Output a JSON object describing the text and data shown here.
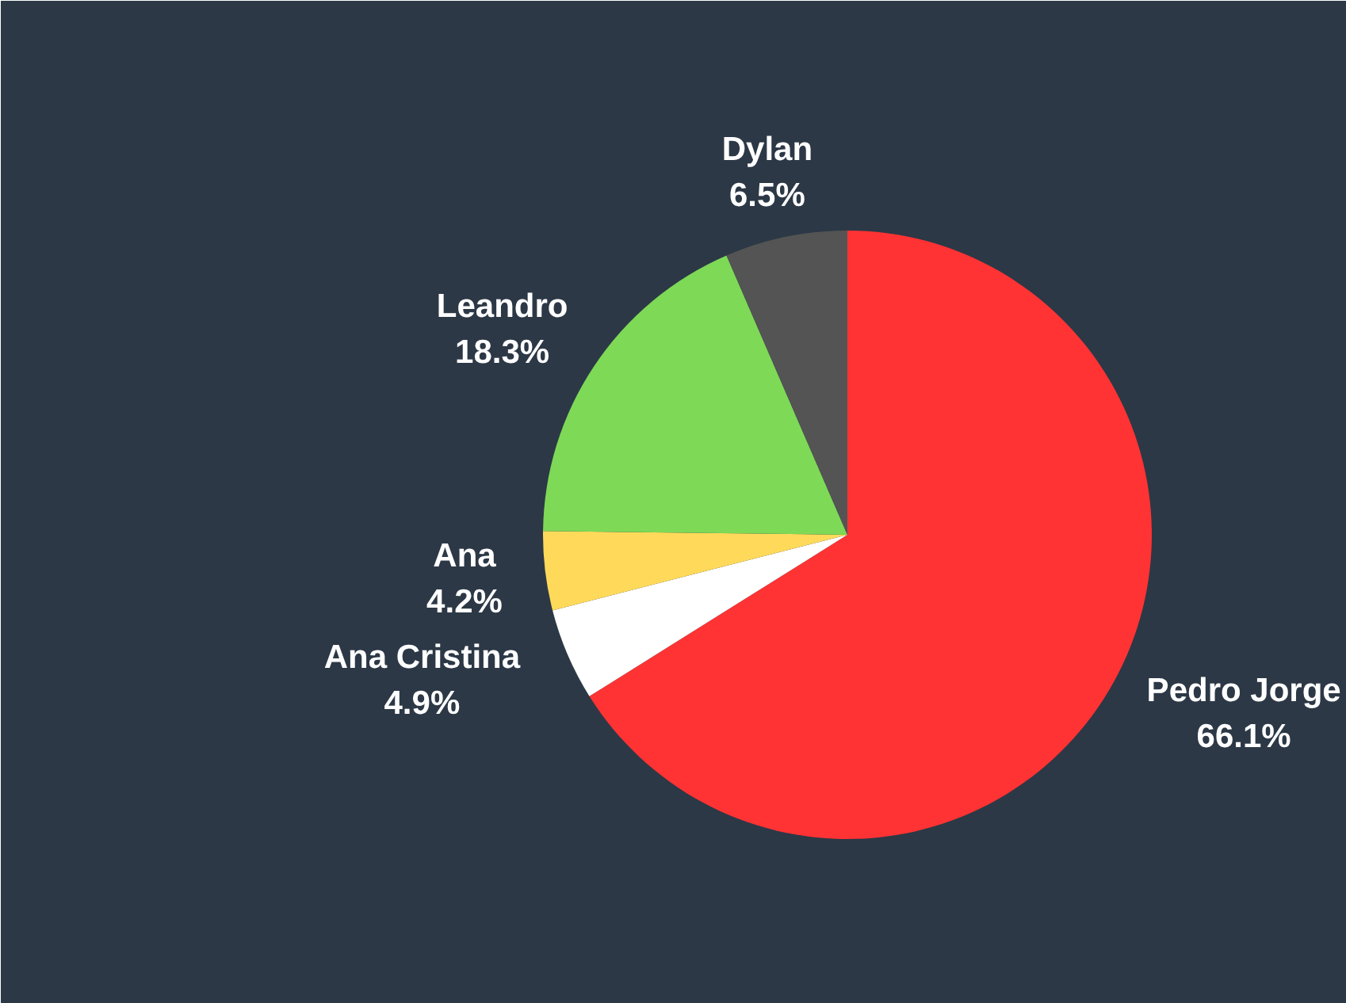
{
  "chart_data": {
    "type": "pie",
    "categories": [
      "Pedro Jorge",
      "Ana Cristina",
      "Ana",
      "Leandro",
      "Dylan"
    ],
    "values": [
      66.1,
      4.9,
      4.2,
      18.3,
      6.5
    ],
    "colors": [
      "#ff3333",
      "#ffffff",
      "#ffda5a",
      "#7ed957",
      "#545454"
    ],
    "value_labels": [
      "66.1%",
      "4.9%",
      "4.2%",
      "18.3%",
      "6.5%"
    ]
  }
}
